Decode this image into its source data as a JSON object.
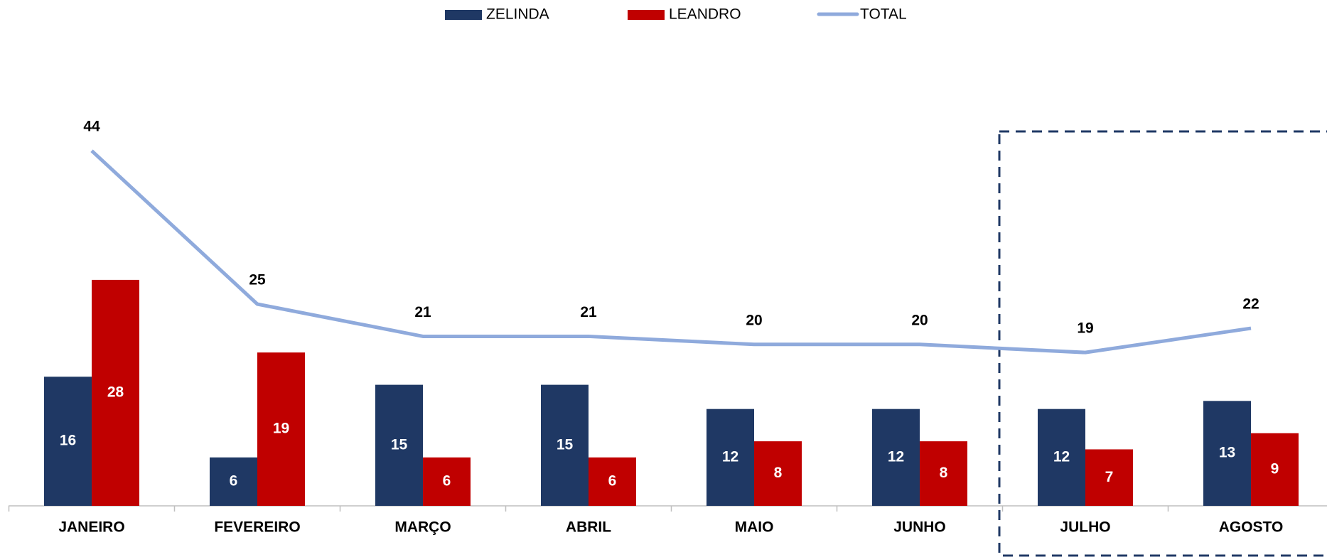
{
  "chart_data": {
    "type": "bar",
    "categories": [
      "JANEIRO",
      "FEVEREIRO",
      "MARÇO",
      "ABRIL",
      "MAIO",
      "JUNHO",
      "JULHO",
      "AGOSTO"
    ],
    "series": [
      {
        "name": "ZELINDA",
        "color": "#1f3864",
        "values": [
          16,
          6,
          15,
          15,
          12,
          12,
          12,
          13
        ]
      },
      {
        "name": "LEANDRO",
        "color": "#c00000",
        "values": [
          28,
          19,
          6,
          6,
          8,
          8,
          7,
          9
        ]
      },
      {
        "name": "TOTAL",
        "type": "line",
        "color": "#8faadc",
        "values": [
          44,
          25,
          21,
          21,
          20,
          20,
          19,
          22
        ]
      }
    ],
    "legend": "top"
  }
}
